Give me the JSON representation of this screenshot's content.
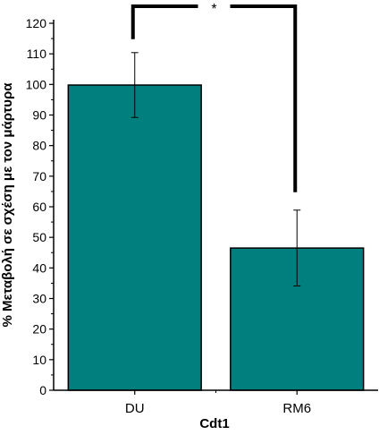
{
  "chart_data": {
    "type": "bar",
    "categories": [
      "DU",
      "RM6"
    ],
    "values": [
      99.8,
      46.5
    ],
    "errors": [
      10.6,
      12.4
    ],
    "xlabel": "Cdt1",
    "ylabel": "% Μεταβολή σε σχέση με τον μάρτυρα",
    "ylim": [
      0,
      120
    ],
    "y_ticks": [
      "0",
      "10",
      "20",
      "30",
      "40",
      "50",
      "60",
      "70",
      "80",
      "90",
      "100",
      "110",
      "120"
    ],
    "grid": false,
    "legend": "none",
    "bar_color": "#007f7f",
    "significance": {
      "label": "*",
      "between": [
        "DU",
        "RM6"
      ]
    }
  }
}
